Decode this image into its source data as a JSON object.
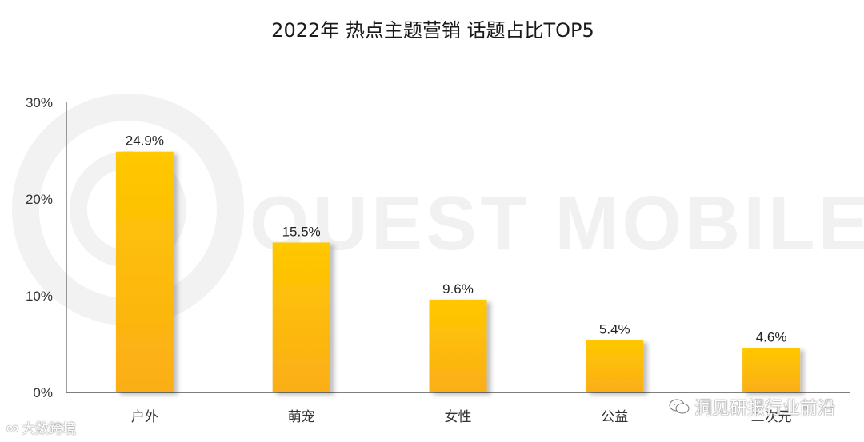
{
  "chart_data": {
    "type": "bar",
    "title": "2022年 热点主题营销 话题占比TOP5",
    "categories": [
      "户外",
      "萌宠",
      "女性",
      "公益",
      "二次元"
    ],
    "values": [
      24.9,
      15.5,
      9.6,
      5.4,
      4.6
    ],
    "data_labels": [
      "24.9%",
      "15.5%",
      "9.6%",
      "5.4%",
      "4.6%"
    ],
    "y_ticks": [
      0,
      10,
      20,
      30
    ],
    "y_tick_labels": [
      "0%",
      "10%",
      "20%",
      "30%"
    ],
    "ylim": [
      0,
      30
    ],
    "grid": false,
    "bar_color_top": "#FFC000",
    "bar_color_bottom": "#FBAE17"
  },
  "watermark": {
    "text": "QUEST MOBILE"
  },
  "brand_left": {
    "text": "大数跨境"
  },
  "brand_right": {
    "text": "洞见研报行业前沿",
    "icon": "wechat-icon"
  }
}
